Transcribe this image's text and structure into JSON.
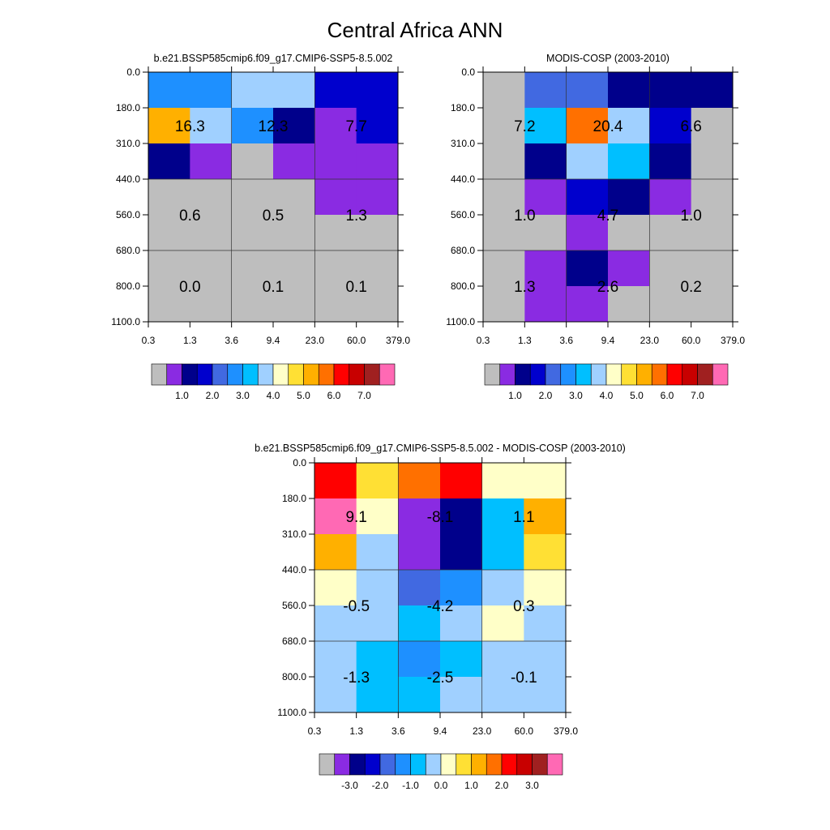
{
  "figure_title": "Central Africa ANN",
  "colors": {
    "abs_palette": [
      "#bebebe",
      "#8a2be2",
      "#00008b",
      "#0000cd",
      "#4169e1",
      "#1e90ff",
      "#00bfff",
      "#a0d0ff",
      "#ffffc8",
      "#ffe034",
      "#ffb000",
      "#ff7000",
      "#ff0000",
      "#c80000",
      "#a02020",
      "#ff69b4"
    ],
    "diff_palette": [
      "#bebebe",
      "#8a2be2",
      "#00008b",
      "#0000cd",
      "#4169e1",
      "#1e90ff",
      "#00bfff",
      "#a0d0ff",
      "#ffffc8",
      "#ffe034",
      "#ffb000",
      "#ff7000",
      "#ff0000",
      "#c80000",
      "#a02020",
      "#ff69b4"
    ]
  },
  "chart_data": [
    {
      "type": "heatmap",
      "title": "b.e21.BSSP585cmip6.f09_g17.CMIP6-SSP5-8.5.002",
      "x_boundaries": [
        "0.3",
        "1.3",
        "3.6",
        "9.4",
        "23.0",
        "60.0",
        "379.0"
      ],
      "y_boundaries": [
        "0.0",
        "180.0",
        "310.0",
        "440.0",
        "560.0",
        "680.0",
        "800.0",
        "1100.0"
      ],
      "cell_color_index": [
        [
          5,
          5,
          7,
          7,
          3,
          3
        ],
        [
          10,
          7,
          5,
          2,
          1,
          3
        ],
        [
          2,
          1,
          0,
          1,
          1,
          1
        ],
        [
          0,
          0,
          0,
          0,
          1,
          1
        ],
        [
          0,
          0,
          0,
          0,
          0,
          0
        ],
        [
          0,
          0,
          0,
          0,
          0,
          0
        ],
        [
          0,
          0,
          0,
          0,
          0,
          0
        ]
      ],
      "block_labels": [
        {
          "row": 1,
          "col": 0,
          "text": "16.3"
        },
        {
          "row": 1,
          "col": 1,
          "text": "12.3"
        },
        {
          "row": 1,
          "col": 2,
          "text": "7.7"
        },
        {
          "row": 2,
          "col": 0,
          "text": "0.6"
        },
        {
          "row": 2,
          "col": 1,
          "text": "0.5"
        },
        {
          "row": 2,
          "col": 2,
          "text": "1.3"
        },
        {
          "row": 3,
          "col": 0,
          "text": "0.0"
        },
        {
          "row": 3,
          "col": 1,
          "text": "0.1"
        },
        {
          "row": 3,
          "col": 2,
          "text": "0.1"
        }
      ],
      "colorbar": {
        "labels": [
          "1.0",
          "2.0",
          "3.0",
          "4.0",
          "5.0",
          "6.0",
          "7.0"
        ],
        "palette": "abs_palette"
      }
    },
    {
      "type": "heatmap",
      "title": "MODIS-COSP (2003-2010)",
      "x_boundaries": [
        "0.3",
        "1.3",
        "3.6",
        "9.4",
        "23.0",
        "60.0",
        "379.0"
      ],
      "y_boundaries": [
        "0.0",
        "180.0",
        "310.0",
        "440.0",
        "560.0",
        "680.0",
        "800.0",
        "1100.0"
      ],
      "cell_color_index": [
        [
          0,
          4,
          4,
          2,
          2,
          2
        ],
        [
          0,
          6,
          11,
          7,
          3,
          0
        ],
        [
          0,
          2,
          7,
          6,
          2,
          0
        ],
        [
          0,
          1,
          3,
          2,
          1,
          0
        ],
        [
          0,
          0,
          1,
          0,
          0,
          0
        ],
        [
          0,
          1,
          2,
          1,
          0,
          0
        ],
        [
          0,
          1,
          1,
          0,
          0,
          0
        ]
      ],
      "block_labels": [
        {
          "row": 1,
          "col": 0,
          "text": "7.2"
        },
        {
          "row": 1,
          "col": 1,
          "text": "20.4"
        },
        {
          "row": 1,
          "col": 2,
          "text": "6.6"
        },
        {
          "row": 2,
          "col": 0,
          "text": "1.0"
        },
        {
          "row": 2,
          "col": 1,
          "text": "4.7"
        },
        {
          "row": 2,
          "col": 2,
          "text": "1.0"
        },
        {
          "row": 3,
          "col": 0,
          "text": "1.3"
        },
        {
          "row": 3,
          "col": 1,
          "text": "2.6"
        },
        {
          "row": 3,
          "col": 2,
          "text": "0.2"
        }
      ],
      "colorbar": {
        "labels": [
          "1.0",
          "2.0",
          "3.0",
          "4.0",
          "5.0",
          "6.0",
          "7.0"
        ],
        "palette": "abs_palette"
      }
    },
    {
      "type": "heatmap",
      "title": "b.e21.BSSP585cmip6.f09_g17.CMIP6-SSP5-8.5.002 - MODIS-COSP (2003-2010)",
      "x_boundaries": [
        "0.3",
        "1.3",
        "3.6",
        "9.4",
        "23.0",
        "60.0",
        "379.0"
      ],
      "y_boundaries": [
        "0.0",
        "180.0",
        "310.0",
        "440.0",
        "560.0",
        "680.0",
        "800.0",
        "1100.0"
      ],
      "cell_color_index": [
        [
          12,
          9,
          11,
          12,
          8,
          8
        ],
        [
          15,
          8,
          1,
          2,
          6,
          10
        ],
        [
          10,
          7,
          1,
          2,
          6,
          9
        ],
        [
          8,
          7,
          4,
          5,
          7,
          8
        ],
        [
          7,
          7,
          6,
          7,
          8,
          7
        ],
        [
          7,
          6,
          5,
          6,
          7,
          7
        ],
        [
          7,
          6,
          6,
          7,
          7,
          7
        ]
      ],
      "block_labels": [
        {
          "row": 1,
          "col": 0,
          "text": "9.1"
        },
        {
          "row": 1,
          "col": 1,
          "text": "-8.1"
        },
        {
          "row": 1,
          "col": 2,
          "text": "1.1"
        },
        {
          "row": 2,
          "col": 0,
          "text": "-0.5"
        },
        {
          "row": 2,
          "col": 1,
          "text": "-4.2"
        },
        {
          "row": 2,
          "col": 2,
          "text": "0.3"
        },
        {
          "row": 3,
          "col": 0,
          "text": "-1.3"
        },
        {
          "row": 3,
          "col": 1,
          "text": "-2.5"
        },
        {
          "row": 3,
          "col": 2,
          "text": "-0.1"
        }
      ],
      "colorbar": {
        "labels": [
          "-3.0",
          "-2.0",
          "-1.0",
          "0.0",
          "1.0",
          "2.0",
          "3.0"
        ],
        "palette": "diff_palette"
      }
    }
  ]
}
